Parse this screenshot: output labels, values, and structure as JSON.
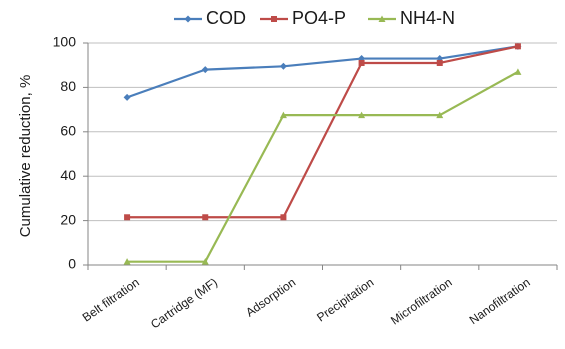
{
  "chart_data": {
    "type": "line",
    "title": "",
    "xlabel": "",
    "ylabel": "Cumulative reduction, %",
    "categories": [
      "Belt filtration",
      "Cartridge (MF)",
      "Adsorption",
      "Precipitation",
      "Microfiltration",
      "Nanofiltration"
    ],
    "ylim": [
      0,
      100
    ],
    "yticks": [
      0,
      20,
      40,
      60,
      80,
      100
    ],
    "grid": "horizontal",
    "legend_position": "top",
    "series": [
      {
        "name": "COD",
        "color": "#4a7ebb",
        "marker": "diamond",
        "values": [
          75.5,
          88,
          89.5,
          93,
          93,
          98.5
        ]
      },
      {
        "name": "PO4-P",
        "color": "#be4b48",
        "marker": "square",
        "values": [
          21.5,
          21.5,
          21.5,
          91,
          91,
          98.5
        ]
      },
      {
        "name": "NH4-N",
        "color": "#98b954",
        "marker": "triangle",
        "values": [
          1.5,
          1.5,
          67.5,
          67.5,
          67.5,
          87
        ]
      }
    ]
  }
}
